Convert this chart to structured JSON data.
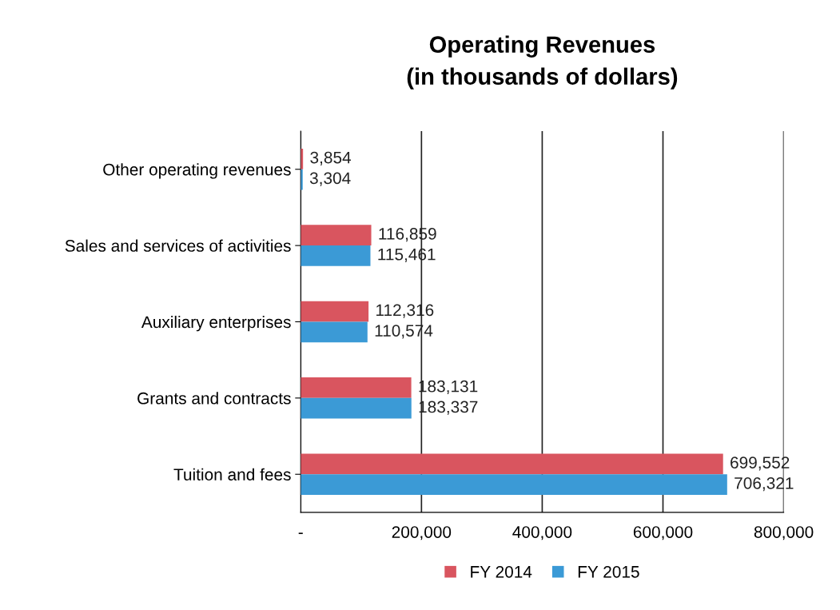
{
  "chart_data": {
    "type": "bar",
    "orientation": "horizontal",
    "title": "Operating Revenues\n(in thousands of dollars)",
    "categories": [
      "Other operating revenues",
      "Sales and services of activities",
      "Auxiliary enterprises",
      "Grants and contracts",
      "Tuition and fees"
    ],
    "series": [
      {
        "name": "FY 2014",
        "color": "#d9555f",
        "values": [
          3854,
          116859,
          112316,
          183131,
          699552
        ],
        "value_labels": [
          "3,854",
          "116,859",
          "112,316",
          "183,131",
          "699,552"
        ]
      },
      {
        "name": "FY 2015",
        "color": "#3b9ad6",
        "values": [
          3304,
          115461,
          110574,
          183337,
          706321
        ],
        "value_labels": [
          "3,304",
          "115,461",
          "110,574",
          "183,337",
          "706,321"
        ]
      }
    ],
    "xlim": [
      0,
      800000
    ],
    "xticks": [
      {
        "value": 0,
        "label": "-"
      },
      {
        "value": 200000,
        "label": "200,000"
      },
      {
        "value": 400000,
        "label": "400,000"
      },
      {
        "value": 600000,
        "label": "600,000"
      },
      {
        "value": 800000,
        "label": "800,000"
      }
    ],
    "grid": "x",
    "legend": "bottom"
  }
}
